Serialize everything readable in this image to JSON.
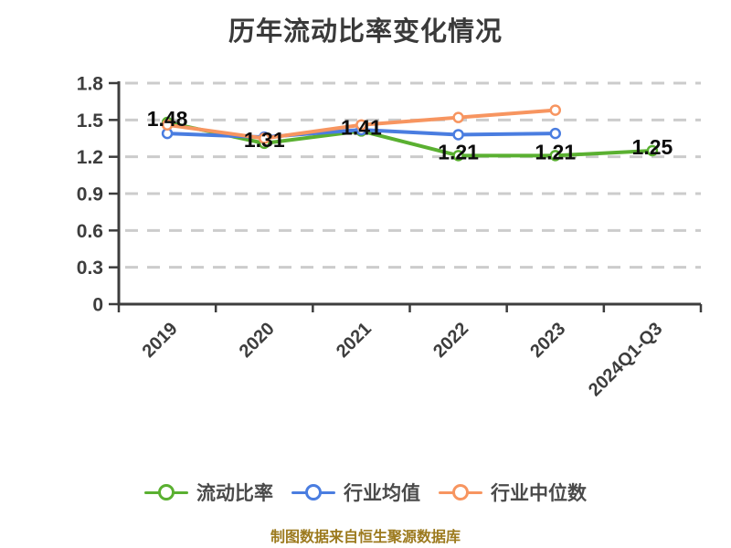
{
  "title": "历年流动比率变化情况",
  "footer": "制图数据来自恒生聚源数据库",
  "colors": {
    "title": "#3a3a3a",
    "axis": "#3d3d3d",
    "grid": "#cccccc",
    "value_label": "#0d0d0d",
    "legend_text": "#4a4a4a",
    "footer": "#9c7a1e",
    "marker_fill": "#ffffff",
    "background": "#ffffff"
  },
  "chart_data": {
    "type": "line",
    "title": "历年流动比率变化情况",
    "categories": [
      "2019",
      "2020",
      "2021",
      "2022",
      "2023",
      "2024Q1-Q3"
    ],
    "series": [
      {
        "key": "current-ratio",
        "name": "流动比率",
        "color": "#5ab031",
        "values": [
          1.48,
          1.31,
          1.41,
          1.21,
          1.21,
          1.25
        ],
        "point_labels": [
          "1.48",
          "1.31",
          "1.41",
          "1.21",
          "1.21",
          "1.25"
        ]
      },
      {
        "key": "industry-average",
        "name": "行业均值",
        "color": "#4a7de0",
        "values": [
          1.39,
          1.36,
          1.42,
          1.38,
          1.39,
          null
        ],
        "point_labels": null
      },
      {
        "key": "industry-median",
        "name": "行业中位数",
        "color": "#f79560",
        "values": [
          1.46,
          1.35,
          1.46,
          1.52,
          1.58,
          null
        ],
        "point_labels": null
      }
    ],
    "xlabel": "",
    "ylabel": "",
    "ylim": [
      0,
      1.8
    ],
    "ytick_values": [
      0,
      0.3,
      0.6,
      0.9,
      1.2,
      1.5,
      1.8
    ],
    "ytick_labels": [
      "0",
      "0.3",
      "0.6",
      "0.9",
      "1.2",
      "1.5",
      "1.8"
    ],
    "grid": "horizontal-dashed",
    "legend_position": "bottom",
    "marker": "hollow-circle",
    "x_tick_rotation": -45
  },
  "legend": {
    "items": [
      {
        "label": "流动比率"
      },
      {
        "label": "行业均值"
      },
      {
        "label": "行业中位数"
      }
    ]
  }
}
